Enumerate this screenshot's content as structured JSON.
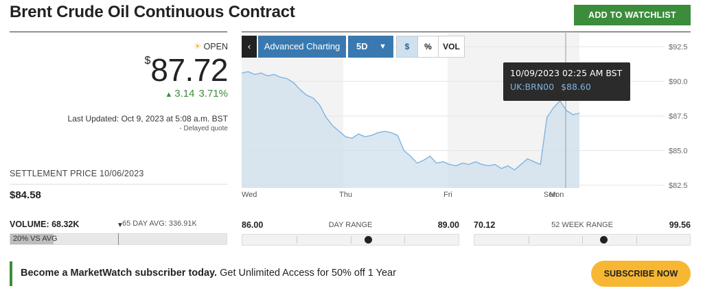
{
  "header": {
    "title": "Brent Crude Oil Continuous Contract",
    "watchlist_label": "ADD TO WATCHLIST"
  },
  "quote": {
    "status": "OPEN",
    "currency_symbol": "$",
    "price": "87.72",
    "change": "3.14",
    "change_pct": "3.71%",
    "last_updated": "Last Updated: Oct 9, 2023 at 5:08 a.m. BST",
    "delayed": "-  Delayed quote",
    "settlement_label": "SETTLEMENT PRICE 10/06/2023",
    "settlement_value": "$84.58"
  },
  "chart_toolbar": {
    "back_label": "‹",
    "advanced_label": "Advanced Charting",
    "period_label": "5D",
    "dollar_label": "$",
    "percent_label": "%",
    "volume_label": "VOL"
  },
  "tooltip": {
    "datetime": "10/09/2023 02:25 AM BST",
    "symbol": "UK:BRN00",
    "value": "$88.60"
  },
  "chart_data": {
    "type": "area",
    "x_tick_labels": [
      "Wed",
      "Thu",
      "Fri",
      "Sun",
      "Mon"
    ],
    "y_tick_labels": [
      "$92.5",
      "$90.0",
      "$87.5",
      "$85.0",
      "$82.5"
    ],
    "y_ticks": [
      92.5,
      90.0,
      87.5,
      85.0,
      82.5
    ],
    "ylim": [
      82.3,
      93.5
    ],
    "grid": true,
    "series": [
      {
        "values": [
          90.6,
          90.7,
          90.5,
          90.6,
          90.4,
          90.5,
          90.3,
          90.2,
          89.9,
          89.4,
          89.0,
          88.8,
          88.3,
          87.4,
          86.8,
          86.4,
          86.0,
          85.9,
          86.2,
          86.0,
          86.1,
          86.3,
          86.4,
          86.3,
          86.1,
          85.0,
          84.6,
          84.1,
          84.3,
          84.6,
          84.1,
          84.2,
          84.0,
          83.9,
          84.1,
          84.0,
          84.2,
          84.0,
          83.9,
          84.0,
          83.7,
          83.9,
          83.6,
          84.0,
          84.4,
          84.2,
          84.0,
          87.4,
          88.1,
          88.6,
          87.9,
          87.6,
          87.7
        ],
        "color": "#7fb3e0"
      }
    ]
  },
  "stats": {
    "volume_label": "VOLUME: 68.32K",
    "avg_label": "65 DAY AVG: 336.91K",
    "avg_marker": "▼",
    "vs_avg": "20% VS AVG",
    "vs_avg_fraction": 0.2,
    "day_range": {
      "low": "86.00",
      "label": "DAY RANGE",
      "high": "89.00",
      "position": 0.58
    },
    "week52_range": {
      "low": "70.12",
      "label": "52 WEEK RANGE",
      "high": "99.56",
      "position": 0.6
    }
  },
  "promo": {
    "bold": "Become a MarketWatch subscriber today.",
    "text": " Get Unlimited Access for 50% off 1 Year",
    "button": "SUBSCRIBE NOW"
  }
}
